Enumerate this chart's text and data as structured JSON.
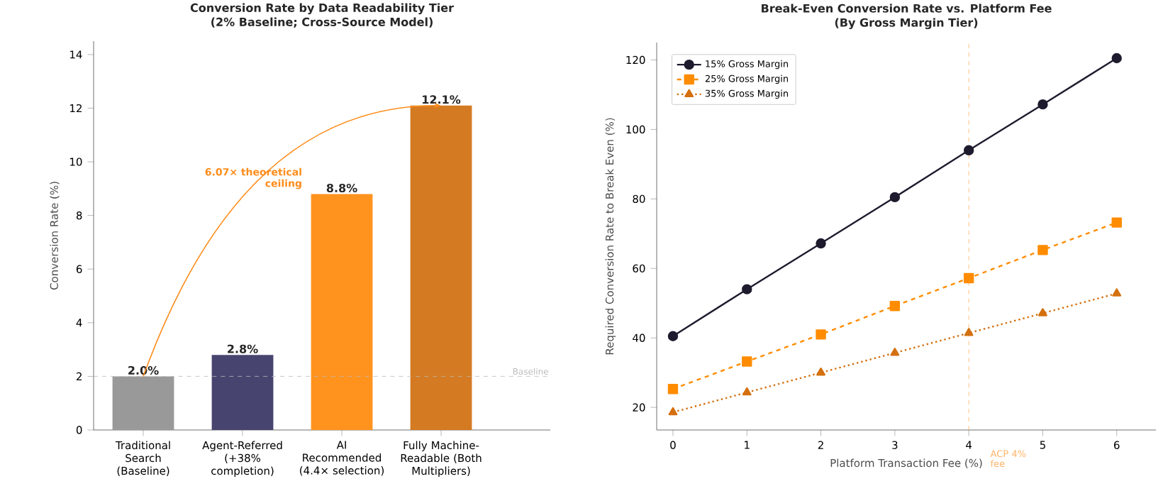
{
  "chart_data": [
    {
      "type": "bar",
      "title": "Conversion Rate by Data Readability Tier",
      "subtitle": "(2% Baseline; Cross-Source Model)",
      "ylabel": "Conversion Rate (%)",
      "categories": [
        "Traditional Search (Baseline)",
        "Agent-Referred (+38% completion)",
        "AI Recommended (4.4× selection)",
        "Fully Machine-Readable (Both Multipliers)"
      ],
      "values": [
        2.0,
        2.8,
        8.8,
        12.1
      ],
      "colors": [
        "#999999",
        "#474570",
        "#ff931e",
        "#d47a22"
      ],
      "value_labels": [
        "2.0%",
        "2.8%",
        "8.8%",
        "12.1%"
      ],
      "ylim": [
        0,
        14.5
      ],
      "yticks": [
        0,
        2,
        4,
        6,
        8,
        10,
        12,
        14
      ],
      "ref_lines": [
        {
          "axis": "y",
          "value": 2,
          "label": "Baseline",
          "color": "#bbbbbb",
          "line_style": "dashed"
        }
      ],
      "annotations": [
        "6.07× theoretical ceiling"
      ],
      "grid": false
    },
    {
      "type": "line",
      "title": "Break-Even Conversion Rate vs. Platform Fee",
      "subtitle": "(By Gross Margin Tier)",
      "xlabel": "Platform Transaction Fee (%)",
      "ylabel": "Required Conversion Rate to Break Even (%)",
      "x": [
        0,
        1,
        2,
        3,
        4,
        5,
        6
      ],
      "series": [
        {
          "name": "15% Gross Margin",
          "color": "#1e1b2e",
          "marker": "circle",
          "line_style": "solid",
          "values": [
            40.5,
            54,
            67.2,
            80.5,
            94,
            107.2,
            120.5
          ]
        },
        {
          "name": "25% Gross Margin",
          "color": "#ff8c00",
          "marker": "square",
          "line_style": "dashed",
          "values": [
            25.3,
            33.2,
            41,
            49.2,
            57.2,
            65.3,
            73.2
          ]
        },
        {
          "name": "35% Gross Margin",
          "color": "#d4700f",
          "marker": "triangle",
          "line_style": "dotted",
          "values": [
            18.6,
            24.3,
            30,
            35.7,
            41.4,
            47.1,
            52.8
          ]
        }
      ],
      "xlim": [
        -0.22,
        6.53
      ],
      "xticks": [
        0,
        1,
        2,
        3,
        4,
        5,
        6
      ],
      "ylim": [
        13.5,
        125
      ],
      "yticks": [
        20,
        40,
        60,
        80,
        100,
        120
      ],
      "ref_lines": [
        {
          "axis": "x",
          "value": 4,
          "label": "ACP 4% fee",
          "color": "#ffb366",
          "line_style": "dashed"
        }
      ],
      "grid": false,
      "legend": "top left"
    }
  ]
}
